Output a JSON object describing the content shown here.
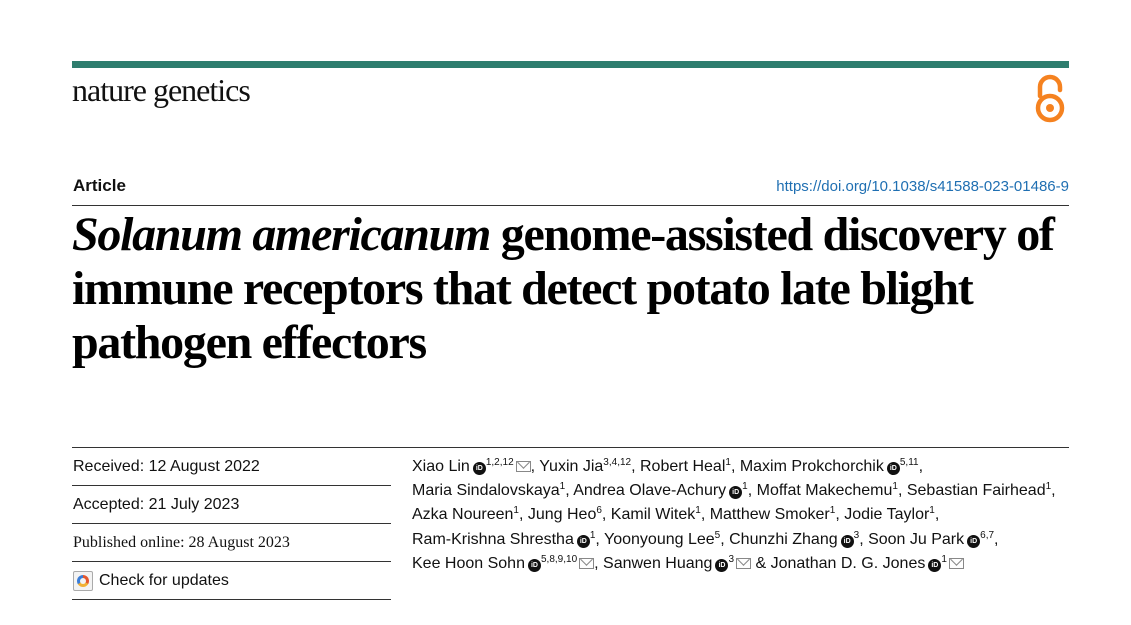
{
  "header": {
    "journal": "nature genetics",
    "open_access_icon": "open-access-icon",
    "bar_color": "#2e7d6e",
    "oa_color": "#f58220"
  },
  "article": {
    "type": "Article",
    "doi": "https://doi.org/10.1038/s41588-023-01486-9",
    "title_italic": "Solanum americanum",
    "title_rest": " genome-assisted discovery of immune receptors that detect potato late blight pathogen effectors"
  },
  "dates": {
    "received": "Received: 12 August 2022",
    "accepted": "Accepted: 21 July 2023",
    "published": "Published online: 28 August 2023",
    "check_updates": "Check for updates"
  },
  "authors": [
    {
      "name": "Xiao Lin",
      "orcid": true,
      "affil": "1,2,12",
      "email": true,
      "sep": ", "
    },
    {
      "name": "Yuxin Jia",
      "orcid": false,
      "affil": "3,4,12",
      "email": false,
      "sep": ", "
    },
    {
      "name": "Robert Heal",
      "orcid": false,
      "affil": "1",
      "email": false,
      "sep": ", "
    },
    {
      "name": "Maxim Prokchorchik",
      "orcid": true,
      "affil": "5,11",
      "email": false,
      "sep": ", "
    },
    {
      "name": "Maria Sindalovskaya",
      "orcid": false,
      "affil": "1",
      "email": false,
      "sep": ", "
    },
    {
      "name": "Andrea Olave-Achury",
      "orcid": true,
      "affil": "1",
      "email": false,
      "sep": ", "
    },
    {
      "name": "Moffat Makechemu",
      "orcid": false,
      "affil": "1",
      "email": false,
      "sep": ", "
    },
    {
      "name": "Sebastian Fairhead",
      "orcid": false,
      "affil": "1",
      "email": false,
      "sep": ", "
    },
    {
      "name": "Azka Noureen",
      "orcid": false,
      "affil": "1",
      "email": false,
      "sep": ", "
    },
    {
      "name": "Jung Heo",
      "orcid": false,
      "affil": "6",
      "email": false,
      "sep": ", "
    },
    {
      "name": "Kamil Witek",
      "orcid": false,
      "affil": "1",
      "email": false,
      "sep": ", "
    },
    {
      "name": "Matthew Smoker",
      "orcid": false,
      "affil": "1",
      "email": false,
      "sep": ", "
    },
    {
      "name": "Jodie Taylor",
      "orcid": false,
      "affil": "1",
      "email": false,
      "sep": ", "
    },
    {
      "name": "Ram-Krishna Shrestha",
      "orcid": true,
      "affil": "1",
      "email": false,
      "sep": ", "
    },
    {
      "name": "Yoonyoung Lee",
      "orcid": false,
      "affil": "5",
      "email": false,
      "sep": ", "
    },
    {
      "name": "Chunzhi Zhang",
      "orcid": true,
      "affil": "3",
      "email": false,
      "sep": ", "
    },
    {
      "name": "Soon Ju Park",
      "orcid": true,
      "affil": "6,7",
      "email": false,
      "sep": ", "
    },
    {
      "name": "Kee Hoon Sohn",
      "orcid": true,
      "affil": "5,8,9,10",
      "email": true,
      "sep": ", "
    },
    {
      "name": "Sanwen Huang",
      "orcid": true,
      "affil": "3",
      "email": true,
      "sep": " & "
    },
    {
      "name": "Jonathan D. G. Jones",
      "orcid": true,
      "affil": "1",
      "email": true,
      "sep": ""
    }
  ]
}
